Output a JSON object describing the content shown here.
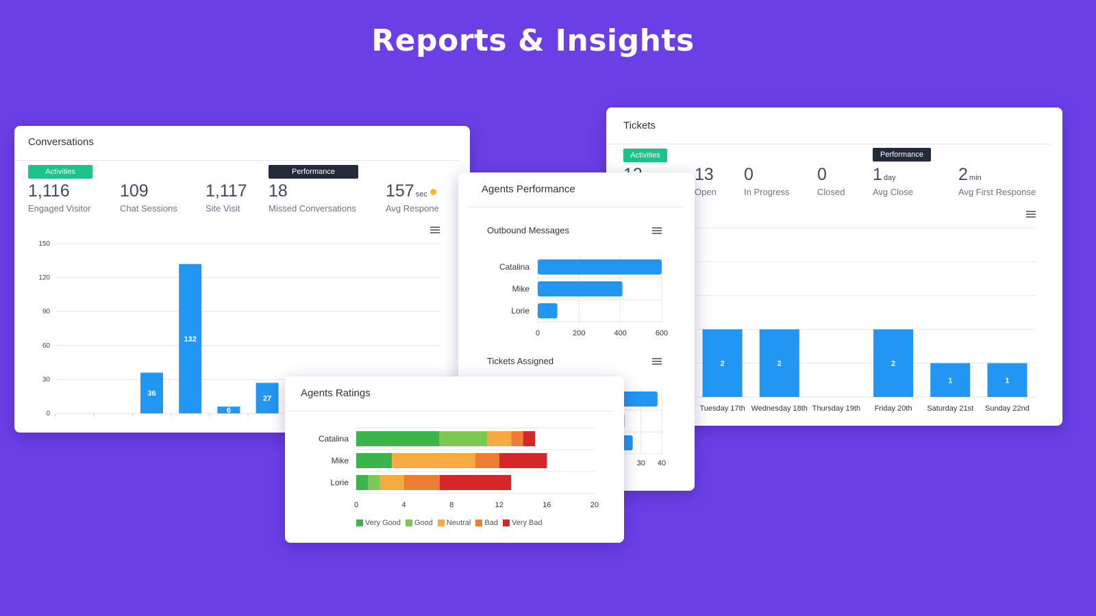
{
  "page_title": "Reports & Insights",
  "conversations": {
    "title": "Conversations",
    "badge_activities": "Activities",
    "badge_performance": "Performance",
    "stats": [
      {
        "value": "1,116",
        "unit": "",
        "label": "Engaged Visitor"
      },
      {
        "value": "109",
        "unit": "",
        "label": "Chat Sessions"
      },
      {
        "value": "1,117",
        "unit": "",
        "label": "Site Visit"
      },
      {
        "value": "18",
        "unit": "",
        "label": "Missed Conversations"
      },
      {
        "value": "157",
        "unit": "sec",
        "label": "Avg Respone"
      }
    ],
    "status_dot_color": "#f5b731"
  },
  "tickets": {
    "title": "Tickets",
    "badge_activities": "Activities",
    "badge_performance": "Performance",
    "partial_value": "12",
    "stats": [
      {
        "value": "13",
        "unit": "",
        "label": "Open"
      },
      {
        "value": "0",
        "unit": "",
        "label": "In Progress"
      },
      {
        "value": "0",
        "unit": "",
        "label": "Closed"
      },
      {
        "value": "1",
        "unit": "day",
        "label": "Avg Close"
      },
      {
        "value": "2",
        "unit": "min",
        "label": "Avg First Response"
      }
    ]
  },
  "agents_performance": {
    "title": "Agents Performance",
    "outbound_title": "Outbound Messages",
    "tickets_assigned_title": "Tickets Assigned"
  },
  "agents_ratings": {
    "title": "Agents Ratings"
  },
  "colors": {
    "background": "#6b3fe6",
    "bar_blue": "#2196f3",
    "very_good": "#3cb44b",
    "good": "#7dc855",
    "neutral": "#f5ab40",
    "bad": "#ec7e33",
    "very_bad": "#d62728"
  },
  "chart_data": [
    {
      "id": "conversations",
      "type": "bar",
      "categories": [
        "",
        "",
        "",
        "",
        "",
        "",
        "",
        "",
        "",
        ""
      ],
      "values": [
        0,
        0,
        36,
        132,
        6,
        27,
        2,
        0,
        0,
        0
      ],
      "ylim": [
        0,
        150
      ],
      "yticks": [
        "0",
        "30",
        "60",
        "90",
        "120",
        "150"
      ],
      "xlabel": "",
      "ylabel": ""
    },
    {
      "id": "tickets",
      "type": "bar",
      "categories": [
        "Tuesday 17th",
        "Wednesday 18th",
        "Thursday 19th",
        "Friday 20th",
        "Saturday 21st",
        "Sunday 22nd"
      ],
      "values": [
        2,
        2,
        0,
        2,
        1,
        1
      ],
      "ylim": [
        0,
        5
      ],
      "xlabel": "",
      "ylabel": ""
    },
    {
      "id": "outbound",
      "type": "bar",
      "orientation": "horizontal",
      "categories": [
        "Catalina",
        "Mike",
        "Lorie"
      ],
      "values": [
        600,
        410,
        95
      ],
      "xlim": [
        0,
        600
      ],
      "xticks": [
        "0",
        "200",
        "400",
        "600"
      ],
      "xlabel": "",
      "ylabel": ""
    },
    {
      "id": "tickets_assigned",
      "type": "bar",
      "orientation": "horizontal",
      "categories": [
        "Catalina",
        "Mike",
        "Lorie"
      ],
      "values": [
        38,
        22,
        26
      ],
      "xlim": [
        0,
        40
      ],
      "xticks": [
        "30",
        "40"
      ],
      "xlabel": "",
      "ylabel": ""
    },
    {
      "id": "ratings",
      "type": "bar",
      "orientation": "horizontal",
      "stacked": true,
      "categories": [
        "Catalina",
        "Mike",
        "Lorie"
      ],
      "series": [
        {
          "name": "Very Good",
          "values": [
            7,
            3,
            1
          ]
        },
        {
          "name": "Good",
          "values": [
            4,
            0,
            1
          ]
        },
        {
          "name": "Neutral",
          "values": [
            2,
            7,
            2
          ]
        },
        {
          "name": "Bad",
          "values": [
            1,
            2,
            3
          ]
        },
        {
          "name": "Very Bad",
          "values": [
            1,
            4,
            6
          ]
        }
      ],
      "xlim": [
        0,
        20
      ],
      "xticks": [
        "0",
        "4",
        "8",
        "12",
        "16",
        "20"
      ],
      "legend": "bottom",
      "xlabel": "",
      "ylabel": ""
    }
  ]
}
